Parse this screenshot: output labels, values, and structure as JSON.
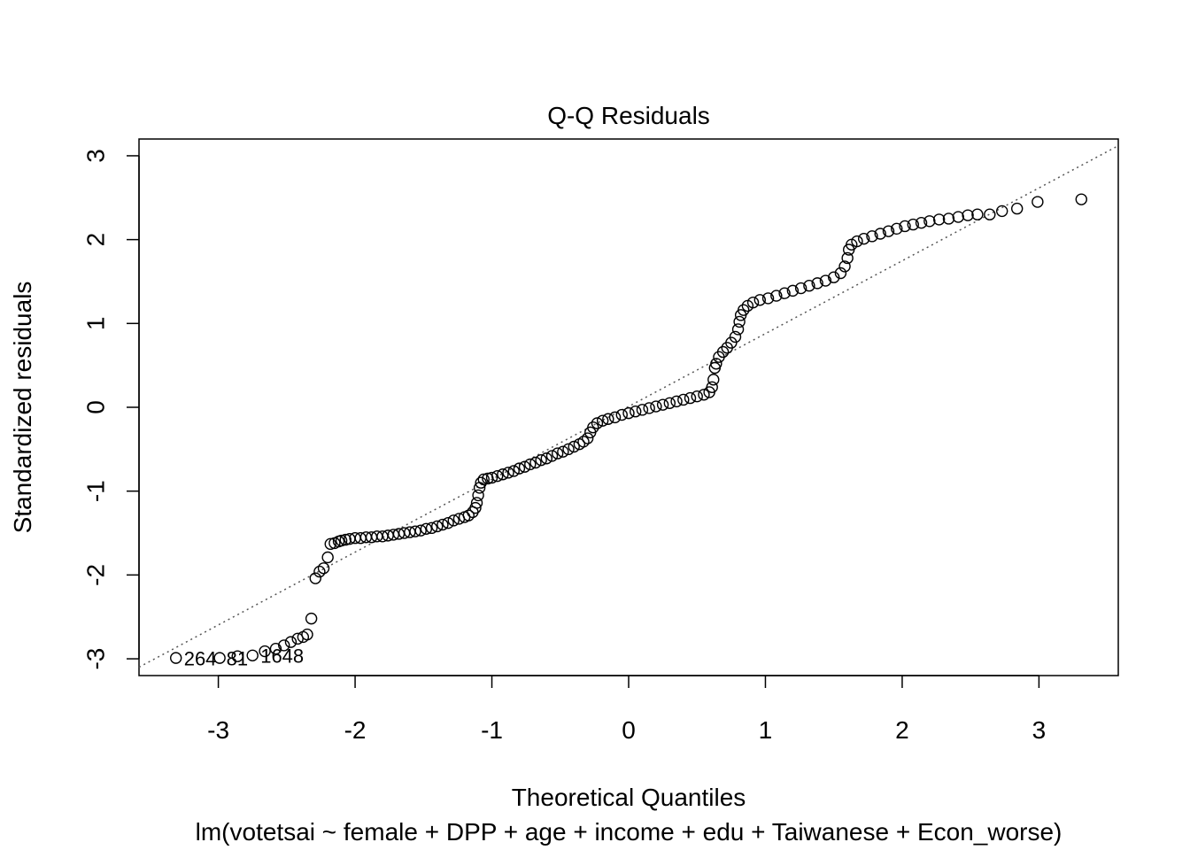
{
  "chart_data": {
    "type": "scatter",
    "title": "Q-Q Residuals",
    "xlabel": "Theoretical Quantiles",
    "ylabel": "Standardized residuals",
    "subtitle": "lm(votetsai ~ female + DPP + age + income + edu + Taiwanese + Econ_worse)",
    "xlim": [
      -3.58,
      3.58
    ],
    "ylim": [
      -3.2,
      3.2
    ],
    "xticks": [
      -3,
      -2,
      -1,
      0,
      1,
      2,
      3
    ],
    "yticks": [
      -3,
      -2,
      -1,
      0,
      1,
      2,
      3
    ],
    "xtick_labels": [
      "-3",
      "-2",
      "-1",
      "0",
      "1",
      "2",
      "3"
    ],
    "ytick_labels": [
      "-3",
      "-2",
      "-1",
      "0",
      "1",
      "2",
      "3"
    ],
    "reference_line": {
      "x": [
        -3.58,
        3.58
      ],
      "y": [
        -3.1,
        3.12
      ]
    },
    "outlier_labels": [
      {
        "text": "264",
        "x": -3.31,
        "y": -3.0
      },
      {
        "text": "81",
        "x": -3.0,
        "y": -3.0
      },
      {
        "text": "1648",
        "x": -2.75,
        "y": -2.97
      }
    ],
    "points": [
      {
        "x": -3.31,
        "y": -2.99
      },
      {
        "x": -2.99,
        "y": -2.99
      },
      {
        "x": -2.86,
        "y": -2.97
      },
      {
        "x": -2.75,
        "y": -2.96
      },
      {
        "x": -2.66,
        "y": -2.91
      },
      {
        "x": -2.58,
        "y": -2.88
      },
      {
        "x": -2.52,
        "y": -2.84
      },
      {
        "x": -2.47,
        "y": -2.8
      },
      {
        "x": -2.42,
        "y": -2.76
      },
      {
        "x": -2.38,
        "y": -2.74
      },
      {
        "x": -2.35,
        "y": -2.71
      },
      {
        "x": -2.32,
        "y": -2.52
      },
      {
        "x": -2.29,
        "y": -2.04
      },
      {
        "x": -2.26,
        "y": -1.96
      },
      {
        "x": -2.23,
        "y": -1.92
      },
      {
        "x": -2.2,
        "y": -1.79
      },
      {
        "x": -2.18,
        "y": -1.63
      },
      {
        "x": -2.15,
        "y": -1.62
      },
      {
        "x": -2.12,
        "y": -1.6
      },
      {
        "x": -2.1,
        "y": -1.59
      },
      {
        "x": -2.07,
        "y": -1.58
      },
      {
        "x": -2.04,
        "y": -1.57
      },
      {
        "x": -2.0,
        "y": -1.56
      },
      {
        "x": -1.96,
        "y": -1.56
      },
      {
        "x": -1.92,
        "y": -1.55
      },
      {
        "x": -1.88,
        "y": -1.55
      },
      {
        "x": -1.84,
        "y": -1.54
      },
      {
        "x": -1.8,
        "y": -1.54
      },
      {
        "x": -1.76,
        "y": -1.53
      },
      {
        "x": -1.72,
        "y": -1.52
      },
      {
        "x": -1.68,
        "y": -1.51
      },
      {
        "x": -1.64,
        "y": -1.5
      },
      {
        "x": -1.6,
        "y": -1.49
      },
      {
        "x": -1.56,
        "y": -1.48
      },
      {
        "x": -1.52,
        "y": -1.47
      },
      {
        "x": -1.48,
        "y": -1.45
      },
      {
        "x": -1.44,
        "y": -1.44
      },
      {
        "x": -1.4,
        "y": -1.42
      },
      {
        "x": -1.36,
        "y": -1.4
      },
      {
        "x": -1.32,
        "y": -1.38
      },
      {
        "x": -1.28,
        "y": -1.35
      },
      {
        "x": -1.24,
        "y": -1.33
      },
      {
        "x": -1.2,
        "y": -1.31
      },
      {
        "x": -1.17,
        "y": -1.29
      },
      {
        "x": -1.14,
        "y": -1.25
      },
      {
        "x": -1.12,
        "y": -1.2
      },
      {
        "x": -1.11,
        "y": -1.14
      },
      {
        "x": -1.1,
        "y": -1.05
      },
      {
        "x": -1.09,
        "y": -0.96
      },
      {
        "x": -1.08,
        "y": -0.9
      },
      {
        "x": -1.06,
        "y": -0.86
      },
      {
        "x": -1.03,
        "y": -0.85
      },
      {
        "x": -1.0,
        "y": -0.84
      },
      {
        "x": -0.96,
        "y": -0.82
      },
      {
        "x": -0.92,
        "y": -0.8
      },
      {
        "x": -0.88,
        "y": -0.78
      },
      {
        "x": -0.84,
        "y": -0.76
      },
      {
        "x": -0.8,
        "y": -0.73
      },
      {
        "x": -0.76,
        "y": -0.71
      },
      {
        "x": -0.72,
        "y": -0.68
      },
      {
        "x": -0.68,
        "y": -0.66
      },
      {
        "x": -0.64,
        "y": -0.63
      },
      {
        "x": -0.6,
        "y": -0.61
      },
      {
        "x": -0.56,
        "y": -0.58
      },
      {
        "x": -0.52,
        "y": -0.55
      },
      {
        "x": -0.48,
        "y": -0.53
      },
      {
        "x": -0.44,
        "y": -0.5
      },
      {
        "x": -0.4,
        "y": -0.47
      },
      {
        "x": -0.36,
        "y": -0.44
      },
      {
        "x": -0.33,
        "y": -0.41
      },
      {
        "x": -0.3,
        "y": -0.37
      },
      {
        "x": -0.28,
        "y": -0.3
      },
      {
        "x": -0.26,
        "y": -0.24
      },
      {
        "x": -0.23,
        "y": -0.19
      },
      {
        "x": -0.19,
        "y": -0.16
      },
      {
        "x": -0.15,
        "y": -0.14
      },
      {
        "x": -0.1,
        "y": -0.12
      },
      {
        "x": -0.05,
        "y": -0.09
      },
      {
        "x": 0.0,
        "y": -0.07
      },
      {
        "x": 0.05,
        "y": -0.05
      },
      {
        "x": 0.1,
        "y": -0.03
      },
      {
        "x": 0.15,
        "y": -0.01
      },
      {
        "x": 0.2,
        "y": 0.01
      },
      {
        "x": 0.25,
        "y": 0.03
      },
      {
        "x": 0.3,
        "y": 0.05
      },
      {
        "x": 0.35,
        "y": 0.07
      },
      {
        "x": 0.4,
        "y": 0.09
      },
      {
        "x": 0.45,
        "y": 0.11
      },
      {
        "x": 0.5,
        "y": 0.13
      },
      {
        "x": 0.55,
        "y": 0.15
      },
      {
        "x": 0.59,
        "y": 0.18
      },
      {
        "x": 0.61,
        "y": 0.24
      },
      {
        "x": 0.62,
        "y": 0.33
      },
      {
        "x": 0.63,
        "y": 0.47
      },
      {
        "x": 0.64,
        "y": 0.52
      },
      {
        "x": 0.66,
        "y": 0.6
      },
      {
        "x": 0.69,
        "y": 0.66
      },
      {
        "x": 0.72,
        "y": 0.71
      },
      {
        "x": 0.75,
        "y": 0.77
      },
      {
        "x": 0.78,
        "y": 0.84
      },
      {
        "x": 0.8,
        "y": 0.93
      },
      {
        "x": 0.81,
        "y": 1.02
      },
      {
        "x": 0.82,
        "y": 1.1
      },
      {
        "x": 0.84,
        "y": 1.16
      },
      {
        "x": 0.87,
        "y": 1.21
      },
      {
        "x": 0.91,
        "y": 1.25
      },
      {
        "x": 0.96,
        "y": 1.28
      },
      {
        "x": 1.02,
        "y": 1.3
      },
      {
        "x": 1.08,
        "y": 1.33
      },
      {
        "x": 1.14,
        "y": 1.36
      },
      {
        "x": 1.2,
        "y": 1.39
      },
      {
        "x": 1.26,
        "y": 1.42
      },
      {
        "x": 1.32,
        "y": 1.45
      },
      {
        "x": 1.38,
        "y": 1.48
      },
      {
        "x": 1.44,
        "y": 1.51
      },
      {
        "x": 1.5,
        "y": 1.55
      },
      {
        "x": 1.55,
        "y": 1.6
      },
      {
        "x": 1.58,
        "y": 1.68
      },
      {
        "x": 1.6,
        "y": 1.78
      },
      {
        "x": 1.61,
        "y": 1.88
      },
      {
        "x": 1.63,
        "y": 1.94
      },
      {
        "x": 1.67,
        "y": 1.98
      },
      {
        "x": 1.72,
        "y": 2.01
      },
      {
        "x": 1.78,
        "y": 2.04
      },
      {
        "x": 1.84,
        "y": 2.07
      },
      {
        "x": 1.9,
        "y": 2.1
      },
      {
        "x": 1.96,
        "y": 2.13
      },
      {
        "x": 2.02,
        "y": 2.16
      },
      {
        "x": 2.08,
        "y": 2.18
      },
      {
        "x": 2.14,
        "y": 2.2
      },
      {
        "x": 2.2,
        "y": 2.22
      },
      {
        "x": 2.27,
        "y": 2.24
      },
      {
        "x": 2.34,
        "y": 2.25
      },
      {
        "x": 2.41,
        "y": 2.27
      },
      {
        "x": 2.48,
        "y": 2.29
      },
      {
        "x": 2.55,
        "y": 2.3
      },
      {
        "x": 2.64,
        "y": 2.3
      },
      {
        "x": 2.73,
        "y": 2.34
      },
      {
        "x": 2.84,
        "y": 2.37
      },
      {
        "x": 2.99,
        "y": 2.45
      },
      {
        "x": 3.31,
        "y": 2.48
      }
    ]
  }
}
